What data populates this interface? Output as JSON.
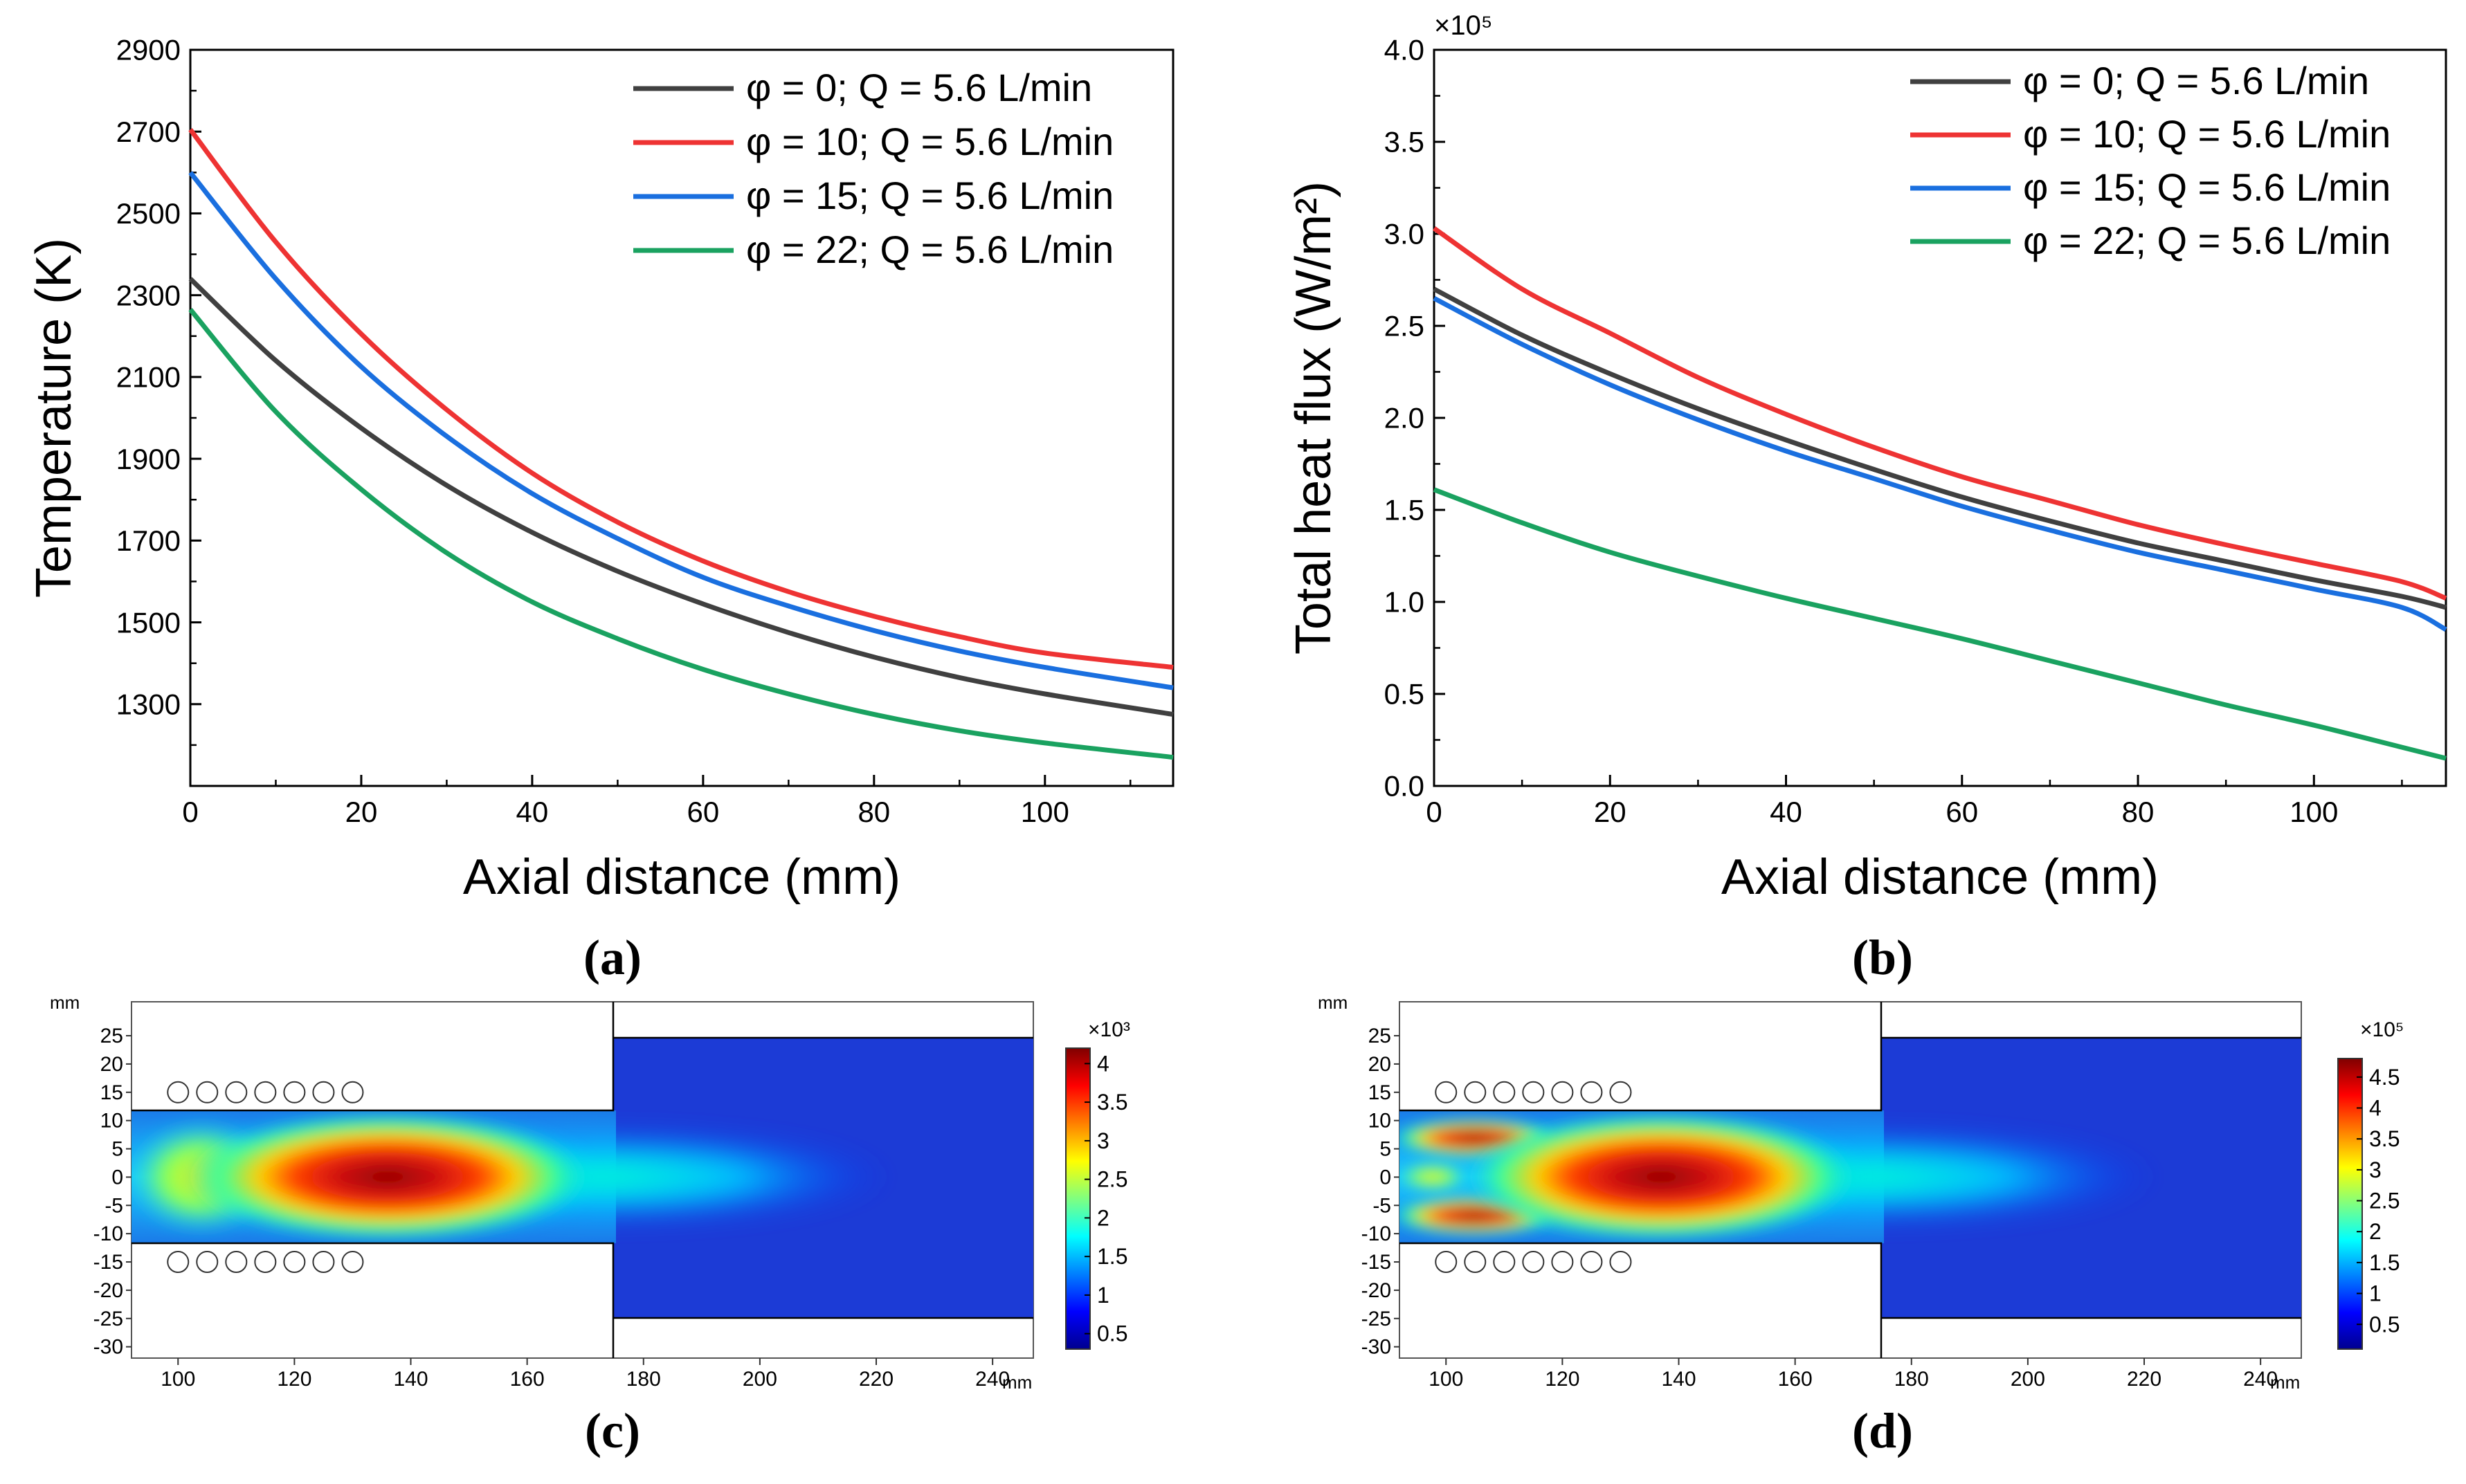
{
  "panel_labels": {
    "a": "(a)",
    "b": "(b)",
    "c": "(c)",
    "d": "(d)"
  },
  "chart_data": [
    {
      "panel": "a",
      "type": "line",
      "xlabel": "Axial distance (mm)",
      "ylabel": "Temperature (K)",
      "xlim": [
        0,
        115
      ],
      "ylim": [
        1100,
        2900
      ],
      "xticks": [
        0,
        20,
        40,
        60,
        80,
        100
      ],
      "yticks": [
        1300,
        1500,
        1700,
        1900,
        2100,
        2300,
        2500,
        2700,
        2900
      ],
      "grid": false,
      "legend_position": "top-right",
      "series": [
        {
          "name": "φ = 0; Q = 5.6 L/min",
          "color": "#404040",
          "x": [
            0,
            10,
            20,
            30,
            40,
            50,
            60,
            70,
            80,
            90,
            100,
            115
          ],
          "y": [
            2340,
            2140,
            1975,
            1835,
            1720,
            1625,
            1545,
            1475,
            1415,
            1365,
            1325,
            1275
          ]
        },
        {
          "name": "φ = 10; Q = 5.6 L/min",
          "color": "#ee3333",
          "x": [
            0,
            10,
            20,
            30,
            40,
            50,
            60,
            70,
            80,
            90,
            100,
            115
          ],
          "y": [
            2705,
            2430,
            2205,
            2020,
            1865,
            1745,
            1650,
            1575,
            1515,
            1465,
            1425,
            1390
          ]
        },
        {
          "name": "φ = 15; Q = 5.6 L/min",
          "color": "#1a6fdf",
          "x": [
            0,
            10,
            20,
            30,
            40,
            50,
            60,
            70,
            80,
            90,
            100,
            115
          ],
          "y": [
            2600,
            2340,
            2125,
            1955,
            1815,
            1705,
            1610,
            1540,
            1480,
            1430,
            1390,
            1340
          ]
        },
        {
          "name": "φ = 22; Q = 5.6 L/min",
          "color": "#1aa260",
          "x": [
            0,
            10,
            20,
            30,
            40,
            50,
            60,
            70,
            80,
            90,
            100,
            115
          ],
          "y": [
            2265,
            2015,
            1825,
            1670,
            1550,
            1460,
            1385,
            1325,
            1275,
            1235,
            1205,
            1170
          ]
        }
      ]
    },
    {
      "panel": "b",
      "type": "line",
      "xlabel": "Axial distance (mm)",
      "ylabel": "Total heat flux (W/m²)",
      "multiplier": "×10⁵",
      "xlim": [
        0,
        115
      ],
      "ylim": [
        0,
        4.0
      ],
      "xticks": [
        0,
        20,
        40,
        60,
        80,
        100
      ],
      "yticks": [
        0.0,
        0.5,
        1.0,
        1.5,
        2.0,
        2.5,
        3.0,
        3.5,
        4.0
      ],
      "ytick_labels": [
        "0.0",
        "0.5",
        "1.0",
        "1.5",
        "2.0",
        "2.5",
        "3.0",
        "3.5",
        "4.0"
      ],
      "grid": false,
      "legend_position": "top-right",
      "series": [
        {
          "name": "φ = 0; Q = 5.6 L/min",
          "color": "#404040",
          "x": [
            0,
            10,
            20,
            30,
            40,
            50,
            60,
            70,
            80,
            90,
            100,
            110,
            115
          ],
          "y": [
            2.7,
            2.45,
            2.24,
            2.05,
            1.88,
            1.72,
            1.57,
            1.44,
            1.32,
            1.22,
            1.12,
            1.03,
            0.97
          ]
        },
        {
          "name": "φ = 10; Q = 5.6 L/min",
          "color": "#ee3333",
          "x": [
            0,
            10,
            20,
            30,
            40,
            50,
            60,
            70,
            80,
            90,
            100,
            110,
            115
          ],
          "y": [
            3.03,
            2.7,
            2.46,
            2.22,
            2.02,
            1.84,
            1.68,
            1.55,
            1.42,
            1.31,
            1.21,
            1.11,
            1.02
          ]
        },
        {
          "name": "φ = 15; Q = 5.6 L/min",
          "color": "#1a6fdf",
          "x": [
            0,
            10,
            20,
            30,
            40,
            50,
            60,
            70,
            80,
            90,
            100,
            110,
            115
          ],
          "y": [
            2.65,
            2.4,
            2.18,
            1.99,
            1.82,
            1.67,
            1.52,
            1.39,
            1.27,
            1.17,
            1.07,
            0.97,
            0.85
          ]
        },
        {
          "name": "φ = 22; Q = 5.6 L/min",
          "color": "#1aa260",
          "x": [
            0,
            10,
            20,
            30,
            40,
            50,
            60,
            70,
            80,
            90,
            100,
            110,
            115
          ],
          "y": [
            1.61,
            1.43,
            1.27,
            1.14,
            1.02,
            0.91,
            0.8,
            0.68,
            0.56,
            0.44,
            0.33,
            0.21,
            0.15
          ]
        }
      ]
    },
    {
      "panel": "c",
      "type": "heatmap",
      "unit_x": "mm",
      "unit_y": "mm",
      "xticks": [
        100,
        120,
        140,
        160,
        180,
        200,
        220,
        240
      ],
      "yticks": [
        25,
        20,
        15,
        10,
        5,
        0,
        -5,
        -10,
        -15,
        -20,
        -25,
        -30
      ],
      "xlim": [
        92,
        247
      ],
      "ylim": [
        -32,
        31
      ],
      "colorbar_multiplier": "×10³",
      "colorbar_ticks": [
        "4",
        "3.5",
        "3",
        "2.5",
        "2",
        "1.5",
        "1",
        "0.5"
      ],
      "colorbar_values": [
        4,
        3.5,
        3,
        2.5,
        2,
        1.5,
        1,
        0.5
      ],
      "colorbar_range": [
        0.3,
        4.2
      ],
      "hotspot": {
        "x": 126,
        "y": 0,
        "value": 4.1
      }
    },
    {
      "panel": "d",
      "type": "heatmap",
      "unit_x": "mm",
      "unit_y": "mm",
      "xticks": [
        100,
        120,
        140,
        160,
        180,
        200,
        220,
        240
      ],
      "yticks": [
        25,
        20,
        15,
        10,
        5,
        0,
        -5,
        -10,
        -15,
        -20,
        -25,
        -30
      ],
      "xlim": [
        92,
        247
      ],
      "ylim": [
        -32,
        31
      ],
      "colorbar_multiplier": "×10⁵",
      "colorbar_ticks": [
        "4.5",
        "4",
        "3.5",
        "3",
        "2.5",
        "2",
        "1.5",
        "1",
        "0.5"
      ],
      "colorbar_values": [
        4.5,
        4,
        3.5,
        3,
        2.5,
        2,
        1.5,
        1,
        0.5
      ],
      "colorbar_range": [
        0.1,
        4.8
      ],
      "hotspot": {
        "x": 128,
        "y": 0,
        "value": 4.6
      }
    }
  ]
}
